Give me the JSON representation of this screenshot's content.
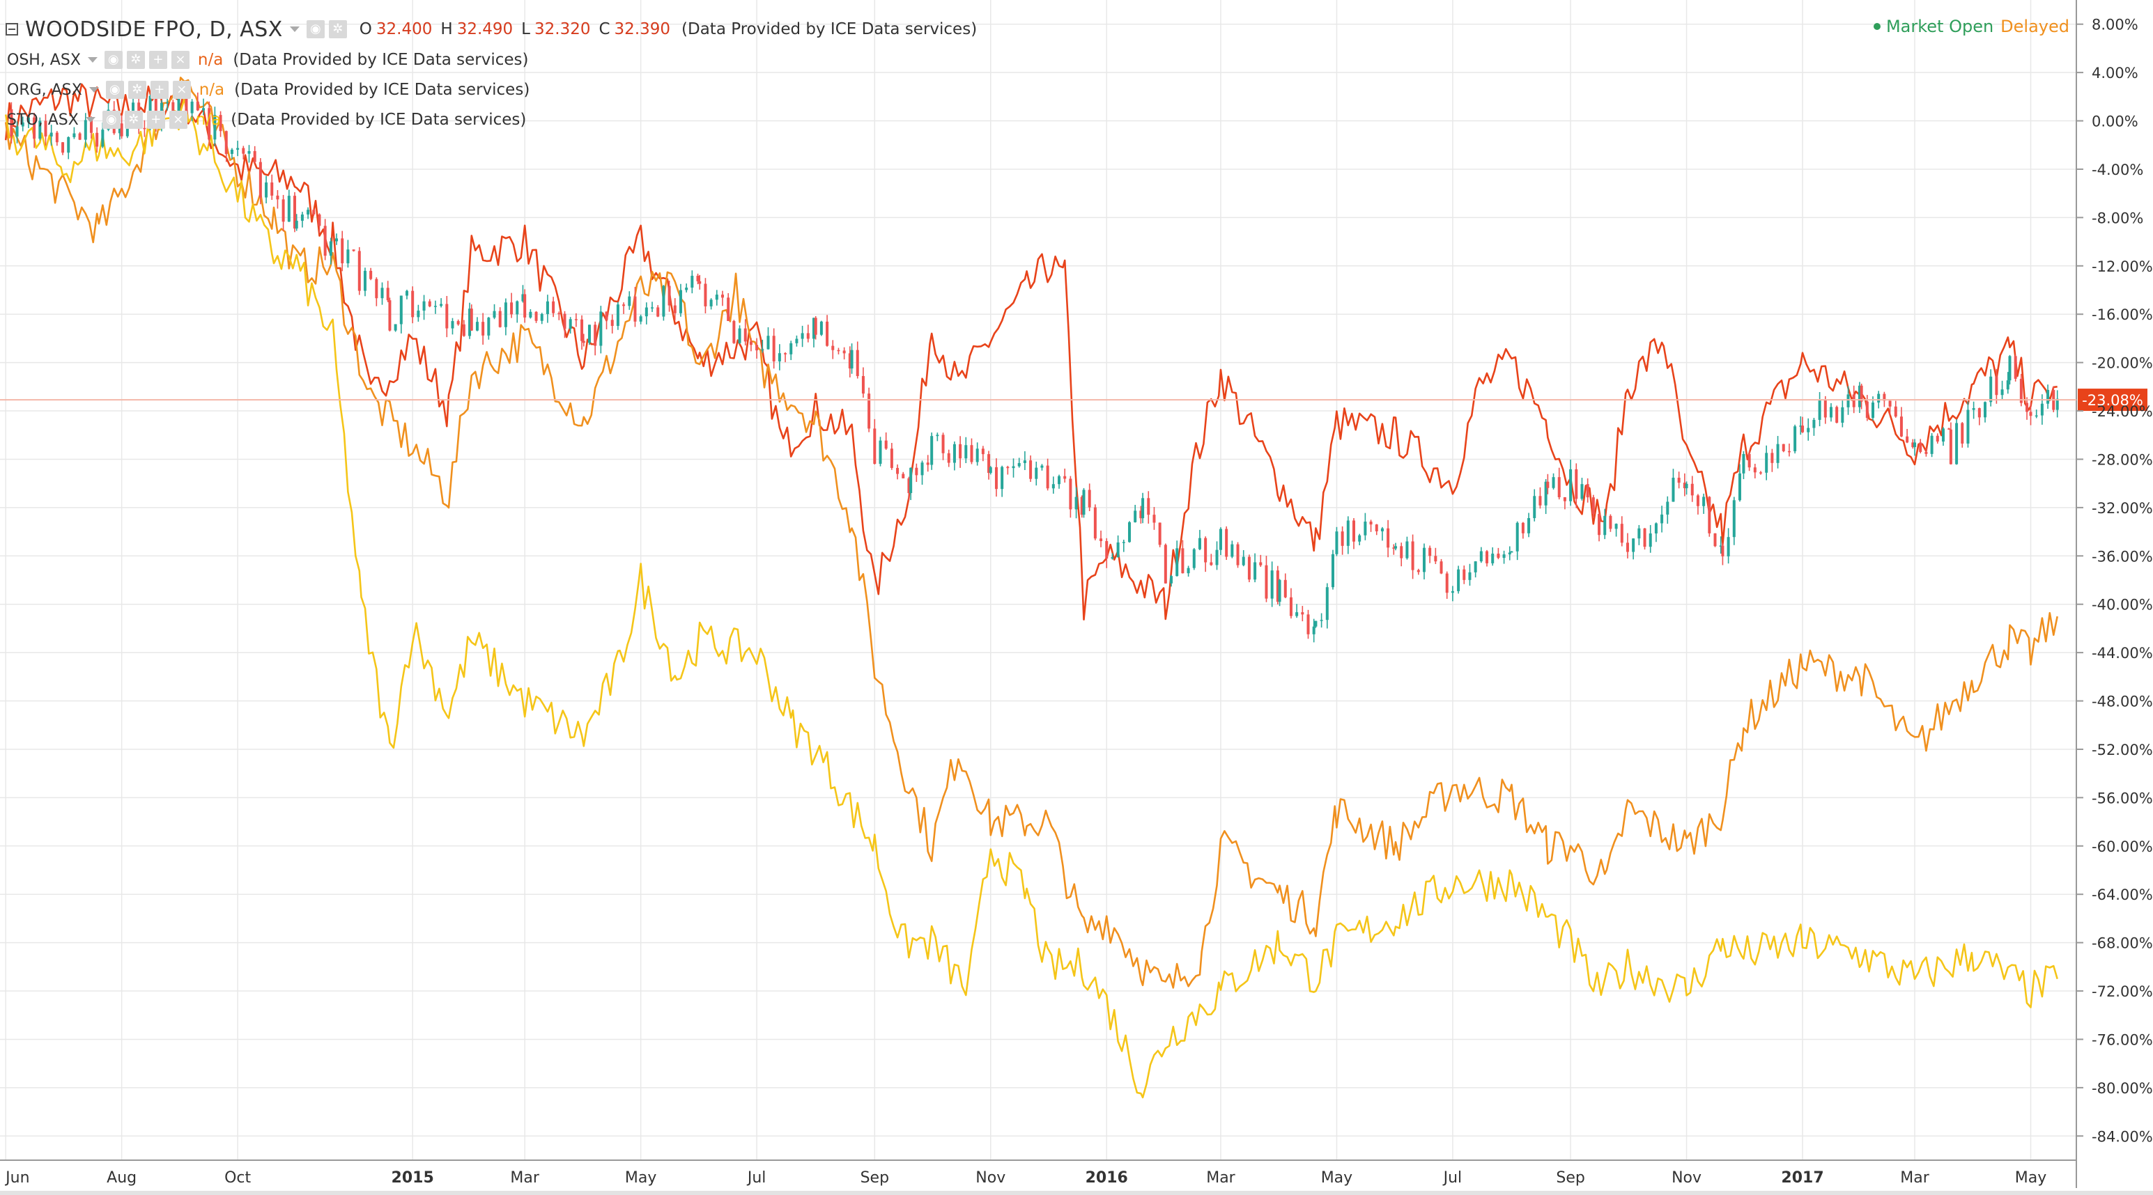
{
  "header": {
    "main_symbol": "WOODSIDE FPO, D, ASX",
    "ohlc": [
      {
        "k": "O",
        "v": "32.400"
      },
      {
        "k": "H",
        "v": "32.490"
      },
      {
        "k": "L",
        "v": "32.320"
      },
      {
        "k": "C",
        "v": "32.390"
      }
    ],
    "source": "(Data Provided by ICE Data services)",
    "market_status": "Market Open",
    "delayed": "Delayed"
  },
  "legend": [
    {
      "symbol": "OSH, ASX",
      "value": "n/a",
      "source": "(Data Provided by ICE Data services)",
      "color": "#e8631a"
    },
    {
      "symbol": "ORG, ASX",
      "value": "n/a",
      "source": "(Data Provided by ICE Data services)",
      "color": "#f0901e"
    },
    {
      "symbol": "STO, ASX",
      "value": "n/a",
      "source": "(Data Provided by ICE Data services)",
      "color": "#f3c10c"
    }
  ],
  "colors": {
    "up": "#26a69a",
    "down": "#ef5350",
    "osh": "#e8431a",
    "org": "#f0901e",
    "sto": "#f5c518",
    "badge": "#e8431a",
    "baseline": "#f4b7a8",
    "grid": "#e8e8e8"
  },
  "chart_data": {
    "type": "line",
    "x_axis_type": "date",
    "x_ticks": [
      {
        "label": "Jun",
        "date": "2014-06-01",
        "bold": false
      },
      {
        "label": "Aug",
        "date": "2014-08-01",
        "bold": false
      },
      {
        "label": "Oct",
        "date": "2014-10-01",
        "bold": false
      },
      {
        "label": "2015",
        "date": "2015-01-01",
        "bold": true
      },
      {
        "label": "Mar",
        "date": "2015-03-01",
        "bold": false
      },
      {
        "label": "May",
        "date": "2015-05-01",
        "bold": false
      },
      {
        "label": "Jul",
        "date": "2015-07-01",
        "bold": false
      },
      {
        "label": "Sep",
        "date": "2015-09-01",
        "bold": false
      },
      {
        "label": "Nov",
        "date": "2015-11-01",
        "bold": false
      },
      {
        "label": "2016",
        "date": "2016-01-01",
        "bold": true
      },
      {
        "label": "Mar",
        "date": "2016-03-01",
        "bold": false
      },
      {
        "label": "May",
        "date": "2016-05-01",
        "bold": false
      },
      {
        "label": "Jul",
        "date": "2016-07-01",
        "bold": false
      },
      {
        "label": "Sep",
        "date": "2016-09-01",
        "bold": false
      },
      {
        "label": "Nov",
        "date": "2016-11-01",
        "bold": false
      },
      {
        "label": "2017",
        "date": "2017-01-01",
        "bold": true
      },
      {
        "label": "Mar",
        "date": "2017-03-01",
        "bold": false
      },
      {
        "label": "May",
        "date": "2017-05-01",
        "bold": false
      }
    ],
    "y_ticks": [
      8,
      4,
      0,
      -4,
      -8,
      -12,
      -16,
      -20,
      -24,
      -28,
      -32,
      -36,
      -40,
      -44,
      -48,
      -52,
      -56,
      -60,
      -64,
      -68,
      -72,
      -76,
      -80,
      -84
    ],
    "y_unit": "%",
    "ylim": [
      -86,
      10
    ],
    "xlim": [
      "2014-05-29",
      "2017-05-25"
    ],
    "current_value_label": "-23.08%",
    "current_value": -23.08,
    "series": [
      {
        "name": "WOODSIDE FPO, D, ASX",
        "style": "candles",
        "points": [
          [
            "2014-06-01",
            0
          ],
          [
            "2014-07-01",
            -2
          ],
          [
            "2014-08-01",
            0
          ],
          [
            "2014-09-01",
            2
          ],
          [
            "2014-10-01",
            -3
          ],
          [
            "2014-11-01",
            -8
          ],
          [
            "2014-12-01",
            -12
          ],
          [
            "2014-12-20",
            -16
          ],
          [
            "2015-01-01",
            -15
          ],
          [
            "2015-02-01",
            -17
          ],
          [
            "2015-03-01",
            -15
          ],
          [
            "2015-04-01",
            -18
          ],
          [
            "2015-05-01",
            -15
          ],
          [
            "2015-06-01",
            -14
          ],
          [
            "2015-07-01",
            -19
          ],
          [
            "2015-08-01",
            -17
          ],
          [
            "2015-08-20",
            -20
          ],
          [
            "2015-09-01",
            -27
          ],
          [
            "2015-09-20",
            -30
          ],
          [
            "2015-10-01",
            -27
          ],
          [
            "2015-11-01",
            -29
          ],
          [
            "2015-12-01",
            -29
          ],
          [
            "2015-12-20",
            -32
          ],
          [
            "2016-01-01",
            -37
          ],
          [
            "2016-01-20",
            -32
          ],
          [
            "2016-02-01",
            -37
          ],
          [
            "2016-03-01",
            -35
          ],
          [
            "2016-04-01",
            -39
          ],
          [
            "2016-04-20",
            -42
          ],
          [
            "2016-05-01",
            -34
          ],
          [
            "2016-06-01",
            -35
          ],
          [
            "2016-07-01",
            -38
          ],
          [
            "2016-08-01",
            -35
          ],
          [
            "2016-08-20",
            -31
          ],
          [
            "2016-09-01",
            -30
          ],
          [
            "2016-10-01",
            -36
          ],
          [
            "2016-11-01",
            -29
          ],
          [
            "2016-11-20",
            -35
          ],
          [
            "2016-12-01",
            -29
          ],
          [
            "2017-01-01",
            -25
          ],
          [
            "2017-02-01",
            -23
          ],
          [
            "2017-03-01",
            -26
          ],
          [
            "2017-03-20",
            -27
          ],
          [
            "2017-04-01",
            -24
          ],
          [
            "2017-04-20",
            -20
          ],
          [
            "2017-05-01",
            -24
          ],
          [
            "2017-05-15",
            -23
          ]
        ]
      },
      {
        "name": "OSH, ASX",
        "color_key": "osh",
        "points": [
          [
            "2014-06-01",
            0
          ],
          [
            "2014-07-01",
            2
          ],
          [
            "2014-08-01",
            1
          ],
          [
            "2014-09-01",
            2
          ],
          [
            "2014-10-01",
            -4
          ],
          [
            "2014-11-01",
            -5
          ],
          [
            "2014-11-20",
            -10
          ],
          [
            "2014-12-10",
            -23
          ],
          [
            "2015-01-01",
            -18
          ],
          [
            "2015-01-20",
            -24
          ],
          [
            "2015-02-01",
            -11
          ],
          [
            "2015-03-01",
            -10
          ],
          [
            "2015-04-01",
            -20
          ],
          [
            "2015-05-01",
            -10
          ],
          [
            "2015-06-01",
            -20
          ],
          [
            "2015-07-01",
            -18
          ],
          [
            "2015-07-15",
            -27
          ],
          [
            "2015-08-01",
            -24
          ],
          [
            "2015-08-20",
            -26
          ],
          [
            "2015-09-01",
            -39
          ],
          [
            "2015-09-20",
            -30
          ],
          [
            "2015-10-01",
            -17
          ],
          [
            "2015-10-15",
            -22
          ],
          [
            "2015-11-01",
            -18
          ],
          [
            "2015-11-20",
            -14
          ],
          [
            "2015-12-01",
            -12
          ],
          [
            "2015-12-10",
            -13
          ],
          [
            "2015-12-20",
            -40
          ],
          [
            "2016-01-01",
            -36
          ],
          [
            "2016-02-01",
            -40
          ],
          [
            "2016-02-15",
            -29
          ],
          [
            "2016-03-01",
            -21
          ],
          [
            "2016-04-01",
            -30
          ],
          [
            "2016-04-20",
            -35
          ],
          [
            "2016-05-01",
            -25
          ],
          [
            "2016-06-01",
            -26
          ],
          [
            "2016-07-01",
            -30
          ],
          [
            "2016-07-15",
            -22
          ],
          [
            "2016-08-01",
            -20
          ],
          [
            "2016-08-20",
            -25
          ],
          [
            "2016-09-01",
            -30
          ],
          [
            "2016-09-20",
            -33
          ],
          [
            "2016-10-01",
            -22
          ],
          [
            "2016-10-20",
            -18
          ],
          [
            "2016-11-01",
            -28
          ],
          [
            "2016-11-20",
            -34
          ],
          [
            "2016-12-01",
            -27
          ],
          [
            "2017-01-01",
            -20
          ],
          [
            "2017-02-01",
            -23
          ],
          [
            "2017-03-01",
            -27
          ],
          [
            "2017-04-01",
            -22
          ],
          [
            "2017-04-20",
            -19
          ],
          [
            "2017-05-01",
            -23
          ],
          [
            "2017-05-15",
            -22
          ]
        ]
      },
      {
        "name": "ORG, ASX",
        "color_key": "org",
        "points": [
          [
            "2014-06-01",
            -1
          ],
          [
            "2014-07-01",
            -6
          ],
          [
            "2014-07-20",
            -9
          ],
          [
            "2014-08-01",
            -6
          ],
          [
            "2014-09-01",
            4
          ],
          [
            "2014-10-01",
            -4
          ],
          [
            "2014-10-20",
            -8
          ],
          [
            "2014-11-01",
            -12
          ],
          [
            "2014-11-20",
            -12
          ],
          [
            "2014-12-10",
            -23
          ],
          [
            "2015-01-01",
            -27
          ],
          [
            "2015-01-20",
            -31
          ],
          [
            "2015-02-01",
            -21
          ],
          [
            "2015-03-01",
            -18
          ],
          [
            "2015-04-01",
            -25
          ],
          [
            "2015-05-01",
            -14
          ],
          [
            "2015-05-20",
            -14
          ],
          [
            "2015-06-01",
            -21
          ],
          [
            "2015-06-20",
            -14
          ],
          [
            "2015-07-01",
            -20
          ],
          [
            "2015-08-01",
            -25
          ],
          [
            "2015-08-20",
            -33
          ],
          [
            "2015-09-01",
            -45
          ],
          [
            "2015-09-15",
            -53
          ],
          [
            "2015-10-01",
            -60
          ],
          [
            "2015-10-15",
            -52
          ],
          [
            "2015-11-01",
            -58
          ],
          [
            "2015-11-20",
            -58
          ],
          [
            "2015-12-01",
            -58
          ],
          [
            "2015-12-20",
            -67
          ],
          [
            "2016-01-01",
            -66
          ],
          [
            "2016-01-20",
            -70
          ],
          [
            "2016-02-01",
            -72
          ],
          [
            "2016-02-20",
            -69
          ],
          [
            "2016-03-01",
            -60
          ],
          [
            "2016-04-01",
            -64
          ],
          [
            "2016-04-20",
            -66
          ],
          [
            "2016-05-01",
            -57
          ],
          [
            "2016-06-01",
            -60
          ],
          [
            "2016-07-01",
            -55
          ],
          [
            "2016-08-01",
            -56
          ],
          [
            "2016-08-20",
            -60
          ],
          [
            "2016-09-01",
            -60
          ],
          [
            "2016-09-20",
            -63
          ],
          [
            "2016-10-01",
            -57
          ],
          [
            "2016-11-01",
            -60
          ],
          [
            "2016-11-20",
            -57
          ],
          [
            "2016-12-01",
            -50
          ],
          [
            "2017-01-01",
            -45
          ],
          [
            "2017-02-01",
            -46
          ],
          [
            "2017-03-01",
            -52
          ],
          [
            "2017-04-01",
            -46
          ],
          [
            "2017-04-20",
            -43
          ],
          [
            "2017-05-01",
            -44
          ],
          [
            "2017-05-15",
            -41
          ]
        ]
      },
      {
        "name": "STO, ASX",
        "color_key": "sto",
        "points": [
          [
            "2014-06-01",
            -1
          ],
          [
            "2014-06-20",
            -2
          ],
          [
            "2014-07-01",
            -4
          ],
          [
            "2014-07-20",
            -2
          ],
          [
            "2014-08-01",
            -3
          ],
          [
            "2014-09-01",
            1
          ],
          [
            "2014-10-01",
            -6
          ],
          [
            "2014-10-20",
            -11
          ],
          [
            "2014-11-01",
            -12
          ],
          [
            "2014-11-20",
            -18
          ],
          [
            "2014-12-05",
            -40
          ],
          [
            "2014-12-20",
            -52
          ],
          [
            "2015-01-01",
            -42
          ],
          [
            "2015-01-20",
            -49
          ],
          [
            "2015-02-01",
            -43
          ],
          [
            "2015-03-01",
            -48
          ],
          [
            "2015-04-01",
            -51
          ],
          [
            "2015-04-20",
            -45
          ],
          [
            "2015-05-01",
            -38
          ],
          [
            "2015-05-20",
            -46
          ],
          [
            "2015-06-01",
            -43
          ],
          [
            "2015-07-01",
            -44
          ],
          [
            "2015-07-20",
            -50
          ],
          [
            "2015-08-01",
            -52
          ],
          [
            "2015-09-01",
            -60
          ],
          [
            "2015-09-15",
            -68
          ],
          [
            "2015-10-01",
            -68
          ],
          [
            "2015-10-20",
            -72
          ],
          [
            "2015-11-01",
            -60
          ],
          [
            "2015-11-20",
            -64
          ],
          [
            "2015-12-01",
            -70
          ],
          [
            "2015-12-20",
            -70
          ],
          [
            "2016-01-01",
            -73
          ],
          [
            "2016-01-20",
            -80
          ],
          [
            "2016-02-01",
            -76
          ],
          [
            "2016-03-01",
            -72
          ],
          [
            "2016-04-01",
            -68
          ],
          [
            "2016-04-20",
            -71
          ],
          [
            "2016-05-01",
            -68
          ],
          [
            "2016-06-01",
            -66
          ],
          [
            "2016-07-01",
            -63
          ],
          [
            "2016-08-01",
            -63
          ],
          [
            "2016-08-20",
            -66
          ],
          [
            "2016-09-01",
            -68
          ],
          [
            "2016-09-15",
            -72
          ],
          [
            "2016-10-01",
            -70
          ],
          [
            "2016-11-01",
            -72
          ],
          [
            "2016-11-20",
            -68
          ],
          [
            "2016-12-01",
            -69
          ],
          [
            "2017-01-01",
            -68
          ],
          [
            "2017-02-01",
            -69
          ],
          [
            "2017-03-01",
            -71
          ],
          [
            "2017-04-01",
            -69
          ],
          [
            "2017-05-01",
            -72
          ],
          [
            "2017-05-15",
            -71
          ]
        ]
      }
    ],
    "title": "WOODSIDE FPO, D, ASX",
    "xlabel": "",
    "ylabel": "",
    "grid": true
  }
}
